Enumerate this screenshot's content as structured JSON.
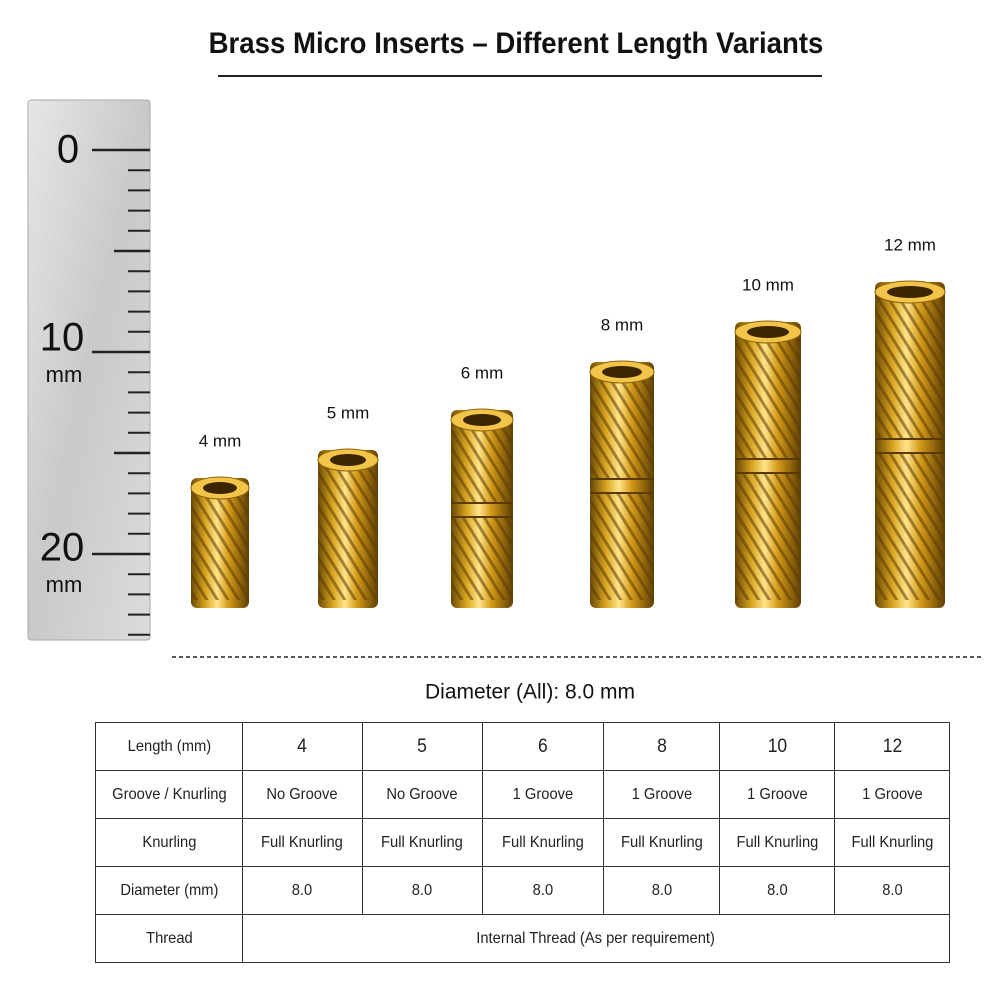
{
  "header": {
    "title": "Brass Micro Inserts – Different Length Variants"
  },
  "ruler": {
    "labels": [
      {
        "number": "0"
      },
      {
        "number": "10",
        "unit": "mm"
      },
      {
        "number": "20",
        "unit": "mm"
      }
    ]
  },
  "inserts": [
    {
      "label": "4 mm"
    },
    {
      "label": "5 mm"
    },
    {
      "label": "6 mm"
    },
    {
      "label": "8 mm"
    },
    {
      "label": "10 mm"
    },
    {
      "label": "12 mm"
    }
  ],
  "diameter_note": "Diameter (All): 8.0 mm",
  "table": {
    "rows": [
      [
        "Length (mm)",
        "4",
        "5",
        "6",
        "8",
        "10",
        "12"
      ],
      [
        "Groove / Knurling",
        "No Groove",
        "No Groove",
        "1 Groove",
        "1 Groove",
        "1 Groove",
        "1 Groove"
      ],
      [
        "Knurling",
        "Full Knurling",
        "Full Knurling",
        "Full Knurling",
        "Full Knurling",
        "Full Knurling",
        "Full Knurling"
      ],
      [
        "Diameter (mm)",
        "8.0",
        "8.0",
        "8.0",
        "8.0",
        "8.0",
        "8.0"
      ],
      [
        "Thread",
        "Internal Thread (As per requirement)"
      ]
    ]
  }
}
